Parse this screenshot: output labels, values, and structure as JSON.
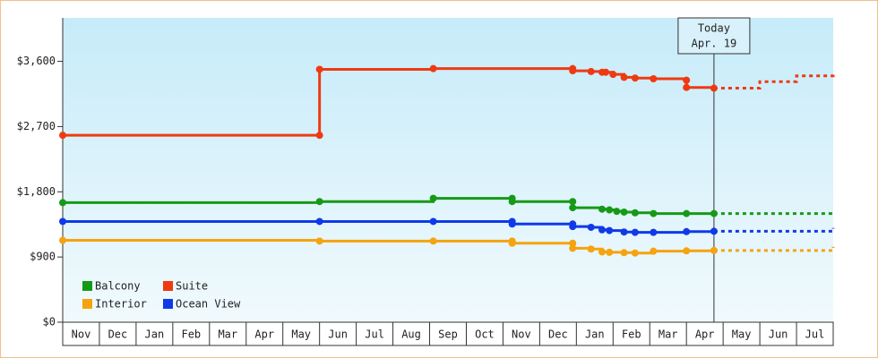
{
  "chart_data": {
    "type": "line",
    "step": true,
    "xlim": [
      0,
      21
    ],
    "ylim": [
      0,
      4200
    ],
    "yticks": [
      {
        "value": 0,
        "label": "$0"
      },
      {
        "value": 900,
        "label": "$900"
      },
      {
        "value": 1800,
        "label": "$1,800"
      },
      {
        "value": 2700,
        "label": "$2,700"
      },
      {
        "value": 3600,
        "label": "$3,600"
      }
    ],
    "categories": [
      "Nov",
      "Dec",
      "Jan",
      "Feb",
      "Mar",
      "Apr",
      "May",
      "Jun",
      "Jul",
      "Aug",
      "Sep",
      "Oct",
      "Nov",
      "Dec",
      "Jan",
      "Feb",
      "Mar",
      "Apr",
      "May",
      "Jun",
      "Jul"
    ],
    "today": {
      "label": "Today",
      "date": "Apr. 19",
      "x": 17.75
    },
    "series": [
      {
        "name": "Balcony",
        "color": "#169a16",
        "x": [
          0,
          7.0,
          10.1,
          12.25,
          12.25,
          13.9,
          13.9,
          14.7,
          14.9,
          15.1,
          15.3,
          15.6,
          16.1,
          17.0,
          17.75
        ],
        "values": [
          1650,
          1665,
          1710,
          1710,
          1665,
          1665,
          1580,
          1560,
          1550,
          1530,
          1520,
          1510,
          1500,
          1500,
          1500
        ],
        "projection": {
          "x": [
            17.75,
            21
          ],
          "values": [
            1500,
            1500
          ]
        }
      },
      {
        "name": "Suite",
        "color": "#ee3a12",
        "x": [
          0,
          7.0,
          7.0,
          10.1,
          13.9,
          13.9,
          14.4,
          14.7,
          14.8,
          15.0,
          15.3,
          15.6,
          16.1,
          17.0,
          17.0,
          17.75
        ],
        "values": [
          2580,
          2580,
          3490,
          3500,
          3500,
          3470,
          3460,
          3450,
          3450,
          3420,
          3380,
          3370,
          3360,
          3340,
          3240,
          3230
        ],
        "projection": {
          "x": [
            17.75,
            19,
            20,
            21
          ],
          "values": [
            3230,
            3320,
            3400,
            3460
          ]
        }
      },
      {
        "name": "Interior",
        "color": "#f5a30f",
        "x": [
          0,
          7.0,
          10.1,
          12.25,
          12.25,
          13.9,
          13.9,
          14.4,
          14.7,
          14.9,
          15.3,
          15.6,
          16.1,
          17.0,
          17.75
        ],
        "values": [
          1130,
          1120,
          1120,
          1120,
          1090,
          1090,
          1020,
          1010,
          970,
          965,
          960,
          955,
          980,
          985,
          990
        ],
        "projection": {
          "x": [
            17.75,
            21
          ],
          "values": [
            990,
            1040
          ]
        }
      },
      {
        "name": "Ocean View",
        "color": "#0f3ae8",
        "x": [
          0,
          7.0,
          10.1,
          12.25,
          12.25,
          13.9,
          13.9,
          14.4,
          14.7,
          14.9,
          15.3,
          15.6,
          16.1,
          17.0,
          17.75
        ],
        "values": [
          1390,
          1390,
          1390,
          1390,
          1355,
          1355,
          1320,
          1310,
          1275,
          1265,
          1245,
          1240,
          1240,
          1250,
          1255
        ],
        "projection": {
          "x": [
            17.75,
            21
          ],
          "values": [
            1255,
            1300
          ]
        }
      }
    ]
  }
}
